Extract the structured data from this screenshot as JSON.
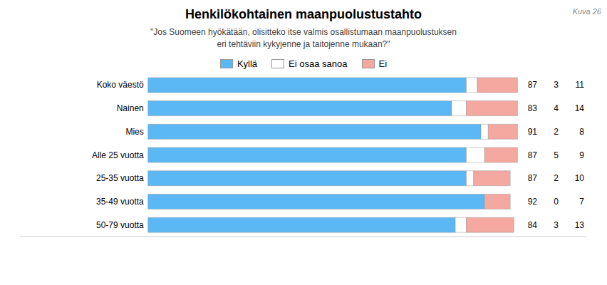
{
  "chart_data": {
    "type": "bar",
    "orientation": "horizontal",
    "stacked": true,
    "title": "Henkilökohtainen maanpuolustustahto",
    "subtitle": "\"Jos Suomeen hyökätään, olisitteko itse valmis osallistumaan maanpuolustuksen\neri tehtäviin kykyjenne ja taitojenne mukaan?\"",
    "annotations": [
      "Kuva 26"
    ],
    "categories": [
      "Koko väestö",
      "Nainen",
      "Mies",
      "Alle 25 vuotta",
      "25-35 vuotta",
      "35-49 vuotta",
      "50-79 vuotta"
    ],
    "series": [
      {
        "name": "Kyllä",
        "color": "#5BB8F5",
        "values": [
          87,
          83,
          91,
          87,
          87,
          92,
          84
        ]
      },
      {
        "name": "Ei osaa sanoa",
        "color": "#FFFFFF",
        "values": [
          3,
          4,
          2,
          5,
          2,
          0,
          3
        ]
      },
      {
        "name": "Ei",
        "color": "#F5A8A0",
        "values": [
          11,
          14,
          8,
          9,
          10,
          7,
          13
        ]
      }
    ],
    "xlim": [
      -35,
      120
    ],
    "tick_labels": false,
    "data_labels": true,
    "legend": "top",
    "grid": false
  }
}
